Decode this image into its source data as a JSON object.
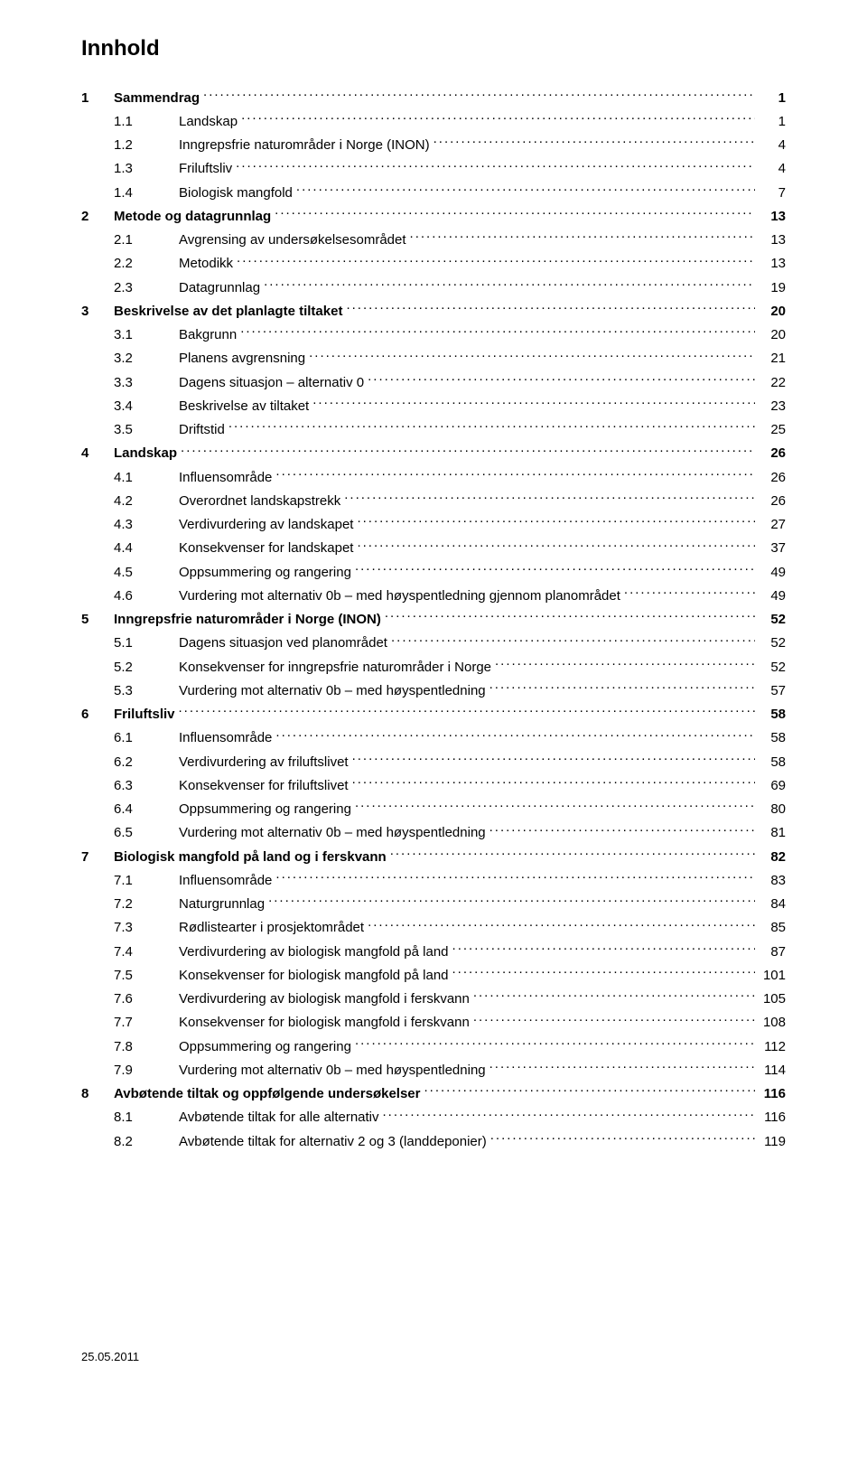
{
  "title": "Innhold",
  "footer_date": "25.05.2011",
  "toc": [
    {
      "level": 1,
      "num": "1",
      "label": "Sammendrag",
      "page": "1",
      "bold": true
    },
    {
      "level": 2,
      "num": "1.1",
      "label": "Landskap",
      "page": "1"
    },
    {
      "level": 2,
      "num": "1.2",
      "label": "Inngrepsfrie naturområder i Norge (INON)",
      "page": "4"
    },
    {
      "level": 2,
      "num": "1.3",
      "label": "Friluftsliv",
      "page": "4"
    },
    {
      "level": 2,
      "num": "1.4",
      "label": "Biologisk mangfold",
      "page": "7"
    },
    {
      "level": 1,
      "num": "2",
      "label": "Metode og datagrunnlag",
      "page": "13",
      "bold": true
    },
    {
      "level": 2,
      "num": "2.1",
      "label": "Avgrensing av undersøkelsesområdet",
      "page": "13"
    },
    {
      "level": 2,
      "num": "2.2",
      "label": "Metodikk",
      "page": "13"
    },
    {
      "level": 2,
      "num": "2.3",
      "label": "Datagrunnlag",
      "page": "19"
    },
    {
      "level": 1,
      "num": "3",
      "label": "Beskrivelse av det planlagte tiltaket",
      "page": "20",
      "bold": true
    },
    {
      "level": 2,
      "num": "3.1",
      "label": "Bakgrunn",
      "page": "20"
    },
    {
      "level": 2,
      "num": "3.2",
      "label": "Planens avgrensning",
      "page": "21"
    },
    {
      "level": 2,
      "num": "3.3",
      "label": "Dagens situasjon – alternativ 0",
      "page": "22"
    },
    {
      "level": 2,
      "num": "3.4",
      "label": "Beskrivelse av tiltaket",
      "page": "23"
    },
    {
      "level": 2,
      "num": "3.5",
      "label": "Driftstid",
      "page": "25"
    },
    {
      "level": 1,
      "num": "4",
      "label": "Landskap",
      "page": "26",
      "bold": true
    },
    {
      "level": 2,
      "num": "4.1",
      "label": "Influensområde",
      "page": "26"
    },
    {
      "level": 2,
      "num": "4.2",
      "label": "Overordnet landskapstrekk",
      "page": "26"
    },
    {
      "level": 2,
      "num": "4.3",
      "label": "Verdivurdering av landskapet",
      "page": "27"
    },
    {
      "level": 2,
      "num": "4.4",
      "label": "Konsekvenser for landskapet",
      "page": "37"
    },
    {
      "level": 2,
      "num": "4.5",
      "label": "Oppsummering og rangering",
      "page": "49"
    },
    {
      "level": 2,
      "num": "4.6",
      "label": "Vurdering mot alternativ 0b – med høyspentledning gjennom planområdet",
      "page": "49"
    },
    {
      "level": 1,
      "num": "5",
      "label": "Inngrepsfrie naturområder i Norge (INON)",
      "page": "52",
      "bold": true
    },
    {
      "level": 2,
      "num": "5.1",
      "label": "Dagens situasjon ved planområdet",
      "page": "52"
    },
    {
      "level": 2,
      "num": "5.2",
      "label": "Konsekvenser for inngrepsfrie naturområder i Norge",
      "page": "52"
    },
    {
      "level": 2,
      "num": "5.3",
      "label": "Vurdering mot alternativ 0b – med høyspentledning",
      "page": "57"
    },
    {
      "level": 1,
      "num": "6",
      "label": "Friluftsliv",
      "page": "58",
      "bold": true
    },
    {
      "level": 2,
      "num": "6.1",
      "label": "Influensområde",
      "page": "58"
    },
    {
      "level": 2,
      "num": "6.2",
      "label": "Verdivurdering av friluftslivet",
      "page": "58"
    },
    {
      "level": 2,
      "num": "6.3",
      "label": "Konsekvenser for friluftslivet",
      "page": "69"
    },
    {
      "level": 2,
      "num": "6.4",
      "label": "Oppsummering og rangering",
      "page": "80"
    },
    {
      "level": 2,
      "num": "6.5",
      "label": "Vurdering mot alternativ 0b – med høyspentledning",
      "page": "81"
    },
    {
      "level": 1,
      "num": "7",
      "label": "Biologisk mangfold på land og i ferskvann",
      "page": "82",
      "bold": true
    },
    {
      "level": 2,
      "num": "7.1",
      "label": "Influensområde",
      "page": "83"
    },
    {
      "level": 2,
      "num": "7.2",
      "label": "Naturgrunnlag",
      "page": "84"
    },
    {
      "level": 2,
      "num": "7.3",
      "label": "Rødlistearter i prosjektområdet",
      "page": "85"
    },
    {
      "level": 2,
      "num": "7.4",
      "label": "Verdivurdering av biologisk mangfold på land",
      "page": "87"
    },
    {
      "level": 2,
      "num": "7.5",
      "label": "Konsekvenser for biologisk mangfold på land",
      "page": "101"
    },
    {
      "level": 2,
      "num": "7.6",
      "label": "Verdivurdering av biologisk mangfold i ferskvann",
      "page": "105"
    },
    {
      "level": 2,
      "num": "7.7",
      "label": "Konsekvenser for biologisk mangfold i ferskvann",
      "page": "108"
    },
    {
      "level": 2,
      "num": "7.8",
      "label": "Oppsummering og rangering",
      "page": "112"
    },
    {
      "level": 2,
      "num": "7.9",
      "label": "Vurdering mot alternativ 0b – med høyspentledning",
      "page": "114"
    },
    {
      "level": 1,
      "num": "8",
      "label": "Avbøtende tiltak og oppfølgende undersøkelser",
      "page": "116",
      "bold": true
    },
    {
      "level": 2,
      "num": "8.1",
      "label": "Avbøtende tiltak for alle alternativ",
      "page": "116"
    },
    {
      "level": 2,
      "num": "8.2",
      "label": "Avbøtende tiltak for alternativ 2 og 3 (landdeponier)",
      "page": "119"
    }
  ]
}
